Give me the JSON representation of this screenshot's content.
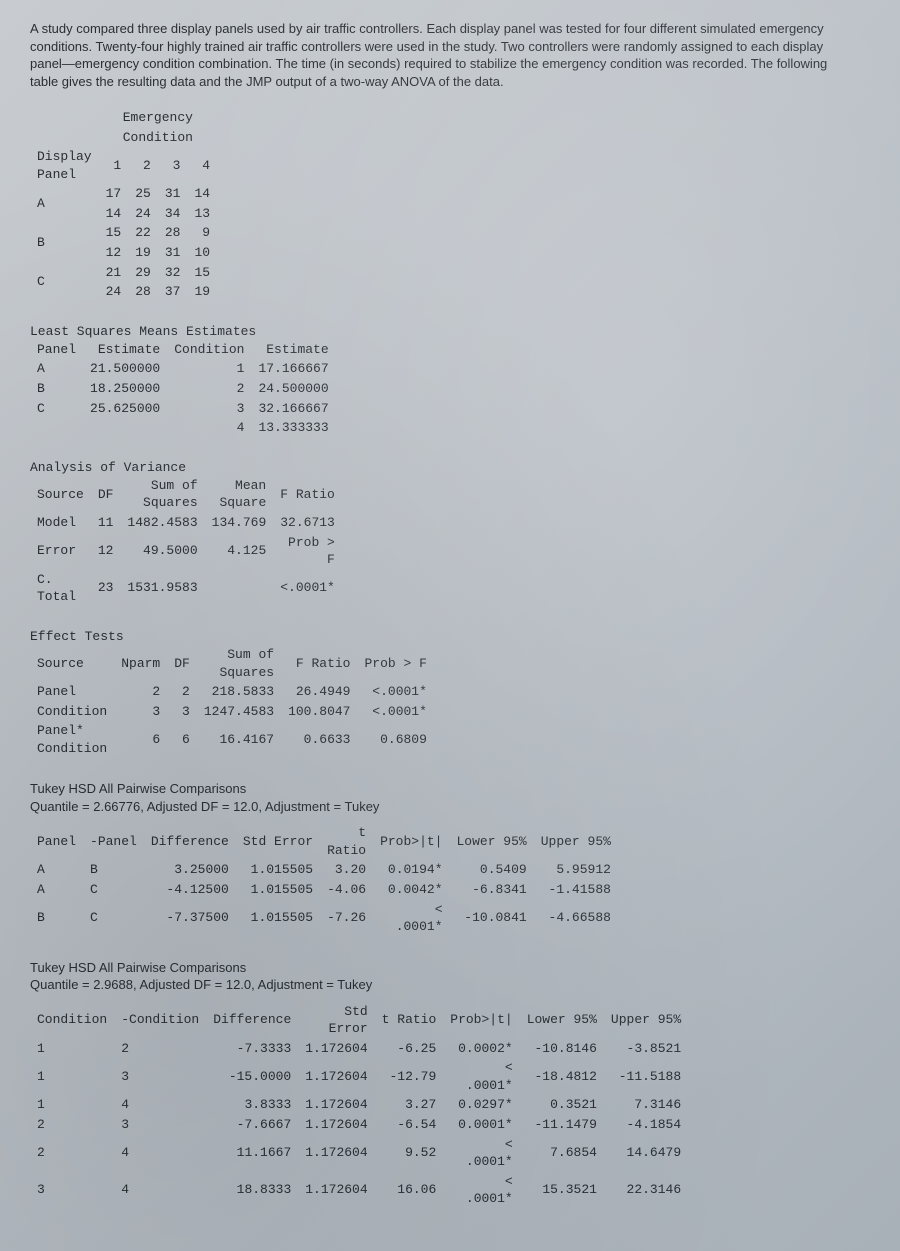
{
  "intro": "A study compared three display panels used by air traffic controllers. Each display panel was tested for four different simulated emergency conditions. Twenty-four highly trained air traffic controllers were used in the study. Two controllers were randomly assigned to each display panel—emergency condition combination. The time (in seconds) required to stabilize the emergency condition was recorded. The following table gives the resulting data and the JMP output of a two-way ANOVA of the data.",
  "raw": {
    "col_header_top": "Emergency",
    "col_header_bot": "Condition",
    "row_header_top": "Display",
    "row_header_bot": "Panel",
    "cols": [
      "1",
      "2",
      "3",
      "4"
    ],
    "panels": [
      "A",
      "B",
      "C"
    ],
    "cells": [
      [
        [
          "17",
          "25",
          "31",
          "14"
        ],
        [
          "14",
          "24",
          "34",
          "13"
        ]
      ],
      [
        [
          "15",
          "22",
          "28",
          "9"
        ],
        [
          "12",
          "19",
          "31",
          "10"
        ]
      ],
      [
        [
          "21",
          "29",
          "32",
          "15"
        ],
        [
          "24",
          "28",
          "37",
          "19"
        ]
      ]
    ]
  },
  "lsm": {
    "title": "Least Squares Means Estimates",
    "h1": "Panel",
    "h2": "Estimate",
    "h3": "Condition",
    "h4": "Estimate",
    "panel_rows": [
      [
        "A",
        "21.500000"
      ],
      [
        "B",
        "18.250000"
      ],
      [
        "C",
        "25.625000"
      ]
    ],
    "cond_rows": [
      [
        "1",
        "17.166667"
      ],
      [
        "2",
        "24.500000"
      ],
      [
        "3",
        "32.166667"
      ],
      [
        "4",
        "13.333333"
      ]
    ]
  },
  "anova": {
    "title": "Analysis of Variance",
    "h_source": "Source",
    "h_df": "DF",
    "h_ss": "Sum of\nSquares",
    "h_ms": "Mean\nSquare",
    "h_f": "F Ratio",
    "rows": [
      [
        "Model",
        "11",
        "1482.4583",
        "134.769",
        "32.6713"
      ],
      [
        "Error",
        "12",
        "49.5000",
        "4.125",
        "Prob >\nF"
      ],
      [
        "C.\nTotal",
        "23",
        "1531.9583",
        "",
        "<.0001*"
      ]
    ]
  },
  "effects": {
    "title": "Effect Tests",
    "h_source": "Source",
    "h_nparm": "Nparm",
    "h_df": "DF",
    "h_ss": "Sum of\nSquares",
    "h_f": "F Ratio",
    "h_p": "Prob > F",
    "rows": [
      [
        "Panel",
        "2",
        "2",
        "218.5833",
        "26.4949",
        "<.0001*"
      ],
      [
        "Condition",
        "3",
        "3",
        "1247.4583",
        "100.8047",
        "<.0001*"
      ],
      [
        "Panel*\nCondition",
        "6",
        "6",
        "16.4167",
        "0.6633",
        "0.6809"
      ]
    ]
  },
  "tukey_panel": {
    "head1": "Tukey HSD All Pairwise Comparisons",
    "head2": "Quantile = 2.66776, Adjusted DF = 12.0, Adjustment = Tukey",
    "h": [
      "Panel",
      "-Panel",
      "Difference",
      "Std Error",
      "t\nRatio",
      "Prob>|t|",
      "Lower 95%",
      "Upper 95%"
    ],
    "rows": [
      [
        "A",
        "B",
        "3.25000",
        "1.015505",
        "3.20",
        "0.0194*",
        "0.5409",
        "5.95912"
      ],
      [
        "A",
        "C",
        "-4.12500",
        "1.015505",
        "-4.06",
        "0.0042*",
        "-6.8341",
        "-1.41588"
      ],
      [
        "B",
        "C",
        "-7.37500",
        "1.015505",
        "-7.26",
        "<\n.0001*",
        "-10.0841",
        "-4.66588"
      ]
    ]
  },
  "tukey_cond": {
    "head1": "Tukey HSD All Pairwise Comparisons",
    "head2": "Quantile = 2.9688, Adjusted DF = 12.0, Adjustment = Tukey",
    "h": [
      "Condition",
      "-Condition",
      "Difference",
      "Std\nError",
      "t Ratio",
      "Prob>|t|",
      "Lower 95%",
      "Upper 95%"
    ],
    "rows": [
      [
        "1",
        "2",
        "-7.3333",
        "1.172604",
        "-6.25",
        "0.0002*",
        "-10.8146",
        "-3.8521"
      ],
      [
        "1",
        "3",
        "-15.0000",
        "1.172604",
        "-12.79",
        "<\n.0001*",
        "-18.4812",
        "-11.5188"
      ],
      [
        "1",
        "4",
        "3.8333",
        "1.172604",
        "3.27",
        "0.0297*",
        "0.3521",
        "7.3146"
      ],
      [
        "2",
        "3",
        "-7.6667",
        "1.172604",
        "-6.54",
        "0.0001*",
        "-11.1479",
        "-4.1854"
      ],
      [
        "2",
        "4",
        "11.1667",
        "1.172604",
        "9.52",
        "<\n.0001*",
        "7.6854",
        "14.6479"
      ],
      [
        "3",
        "4",
        "18.8333",
        "1.172604",
        "16.06",
        "<\n.0001*",
        "15.3521",
        "22.3146"
      ]
    ]
  }
}
